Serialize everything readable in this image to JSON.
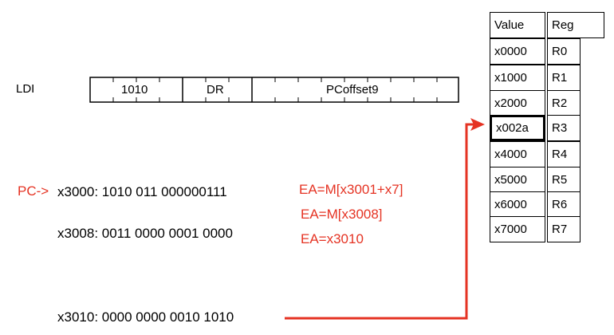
{
  "instruction": {
    "name": "LDI",
    "fields": [
      "1010",
      "DR",
      "PCoffset9"
    ]
  },
  "memory": {
    "pc_pointer": "PC->",
    "lines": [
      "x3000: 1010 011 000000111",
      "x3008: 0011 0000 0001 0000",
      "x3010: 0000 0000 0010 1010"
    ]
  },
  "ea_steps": [
    "EA=M[x3001+x7]",
    "EA=M[x3008]",
    "EA=x3010"
  ],
  "register_table": {
    "headers": [
      "Value",
      "Reg"
    ],
    "rows": [
      {
        "value": "x0000",
        "reg": "R0"
      },
      {
        "value": "x1000",
        "reg": "R1"
      },
      {
        "value": "x2000",
        "reg": "R2"
      },
      {
        "value": "x002a",
        "reg": "R3"
      },
      {
        "value": "x4000",
        "reg": "R4"
      },
      {
        "value": "x5000",
        "reg": "R5"
      },
      {
        "value": "x6000",
        "reg": "R6"
      },
      {
        "value": "x7000",
        "reg": "R7"
      }
    ]
  },
  "colors": {
    "accent": "#e53323",
    "ink": "#000000"
  }
}
